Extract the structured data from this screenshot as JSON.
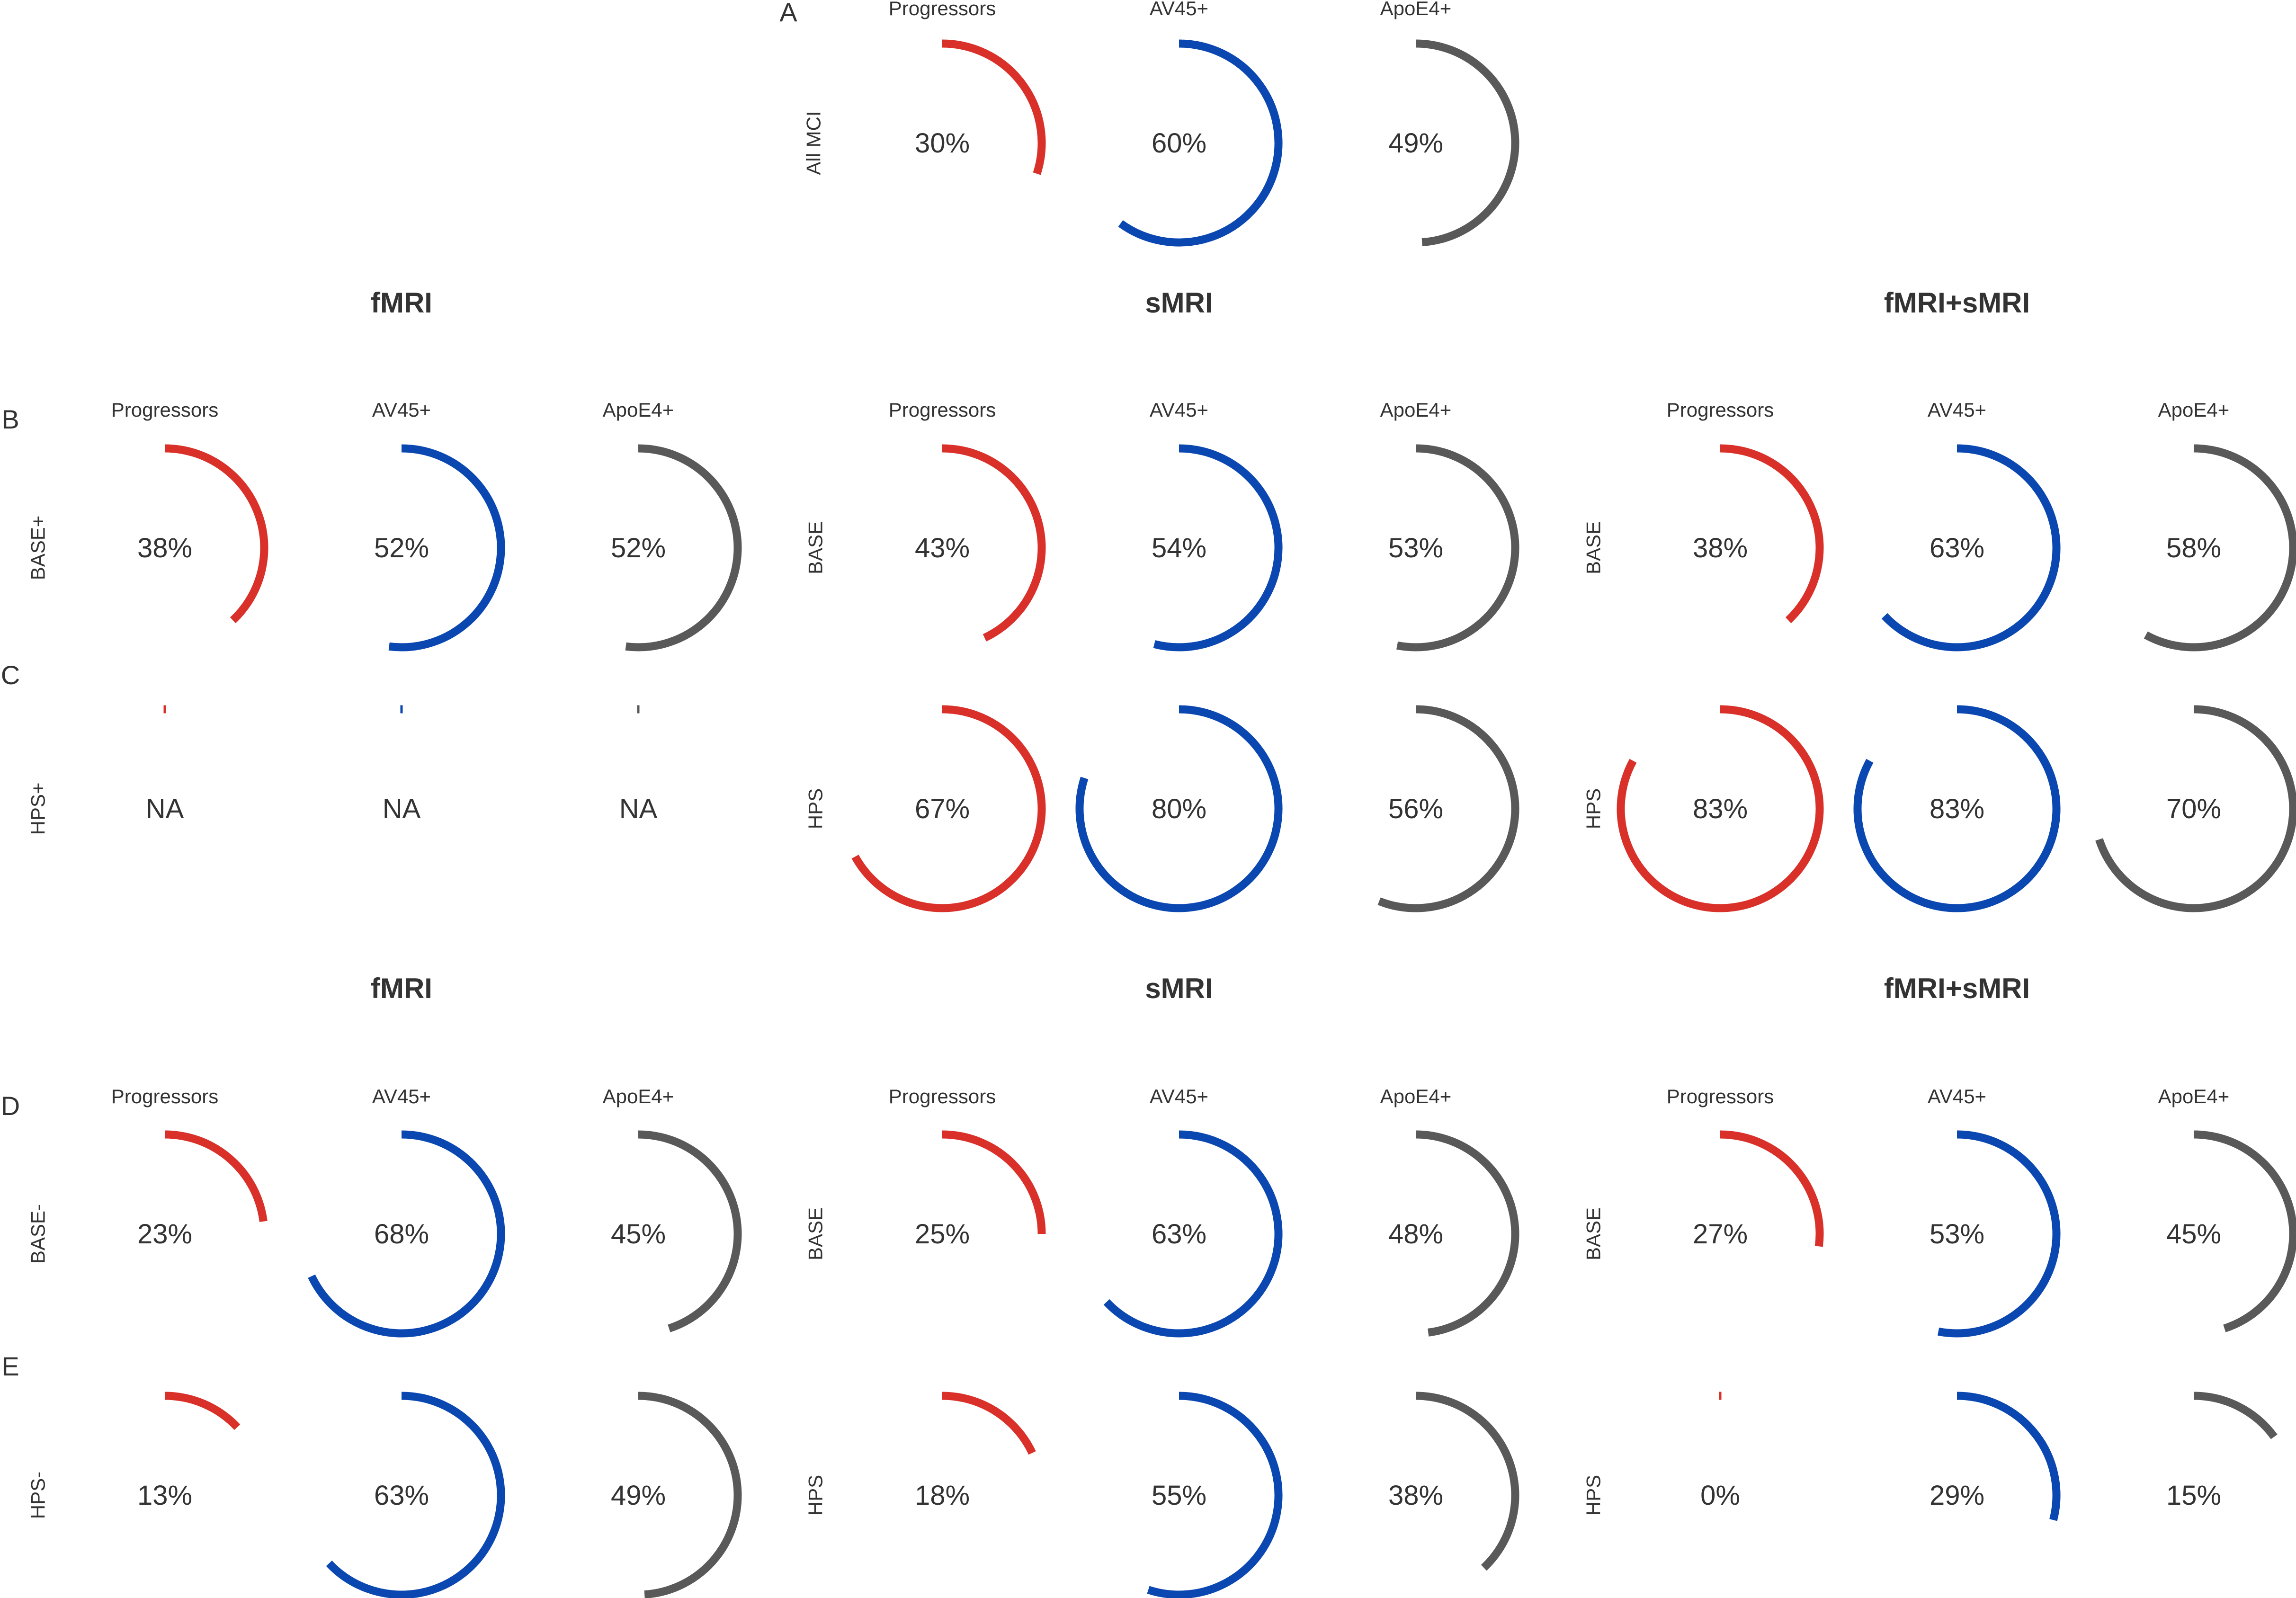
{
  "colors": {
    "progressors": "#d93029",
    "av45": "#0a47b0",
    "apoe4": "#595959",
    "text": "#333333"
  },
  "col_labels": [
    "Progressors",
    "AV45+",
    "ApoE4+"
  ],
  "chart_data": [
    {
      "type": "radial-progress",
      "panel": "A",
      "groups": [
        {
          "row_label": "All MCI",
          "values": [
            30,
            60,
            49
          ],
          "labels": [
            "30%",
            "60%",
            "49%"
          ]
        }
      ]
    },
    {
      "type": "radial-progress",
      "section_title": "fMRI",
      "rows": [
        {
          "panel": "B",
          "row_label": "BASE+",
          "values": [
            38,
            52,
            52
          ],
          "labels": [
            "38%",
            "52%",
            "52%"
          ]
        },
        {
          "panel": "C",
          "row_label": "HPS+",
          "values": [
            null,
            null,
            null
          ],
          "labels": [
            "NA",
            "NA",
            "NA"
          ]
        }
      ]
    },
    {
      "type": "radial-progress",
      "section_title": "sMRI",
      "rows": [
        {
          "row_label": "BASE",
          "values": [
            43,
            54,
            53
          ],
          "labels": [
            "43%",
            "54%",
            "53%"
          ]
        },
        {
          "row_label": "HPS",
          "values": [
            67,
            80,
            56
          ],
          "labels": [
            "67%",
            "80%",
            "56%"
          ]
        }
      ]
    },
    {
      "type": "radial-progress",
      "section_title": "fMRI+sMRI",
      "rows": [
        {
          "row_label": "BASE",
          "values": [
            38,
            63,
            58
          ],
          "labels": [
            "38%",
            "63%",
            "58%"
          ]
        },
        {
          "row_label": "HPS",
          "values": [
            83,
            83,
            70
          ],
          "labels": [
            "83%",
            "83%",
            "70%"
          ]
        }
      ]
    },
    {
      "type": "radial-progress",
      "section_title": "fMRI",
      "rows": [
        {
          "panel": "D",
          "row_label": "BASE-",
          "values": [
            23,
            68,
            45
          ],
          "labels": [
            "23%",
            "68%",
            "45%"
          ]
        },
        {
          "panel": "E",
          "row_label": "HPS-",
          "values": [
            13,
            63,
            49
          ],
          "labels": [
            "13%",
            "63%",
            "49%"
          ]
        }
      ]
    },
    {
      "type": "radial-progress",
      "section_title": "sMRI",
      "rows": [
        {
          "row_label": "BASE",
          "values": [
            25,
            63,
            48
          ],
          "labels": [
            "25%",
            "63%",
            "48%"
          ]
        },
        {
          "row_label": "HPS",
          "values": [
            18,
            55,
            38
          ],
          "labels": [
            "18%",
            "55%",
            "38%"
          ]
        }
      ]
    },
    {
      "type": "radial-progress",
      "section_title": "fMRI+sMRI",
      "rows": [
        {
          "row_label": "BASE",
          "values": [
            27,
            53,
            45
          ],
          "labels": [
            "27%",
            "53%",
            "45%"
          ]
        },
        {
          "row_label": "HPS",
          "values": [
            0,
            29,
            15
          ],
          "labels": [
            "0%",
            "29%",
            "15%"
          ]
        }
      ]
    }
  ]
}
